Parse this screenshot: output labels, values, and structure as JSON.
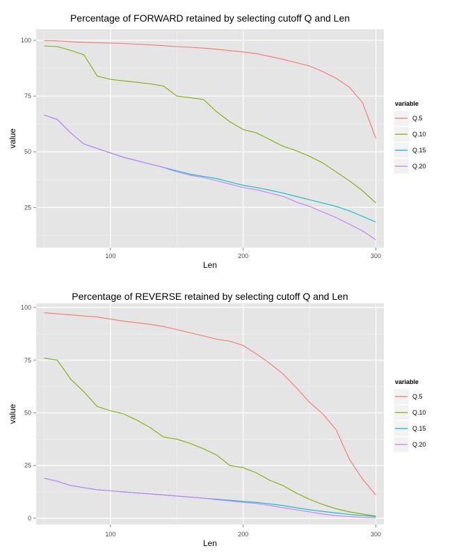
{
  "chart_data": [
    {
      "type": "line",
      "title": "Percentage of FORWARD retained by selecting cutoff Q and Len",
      "xlabel": "Len",
      "ylabel": "value",
      "xlim": [
        44,
        306
      ],
      "ylim": [
        7,
        105
      ],
      "xticks": [
        100,
        200,
        300
      ],
      "yticks": [
        25,
        50,
        75,
        100
      ],
      "grid": true,
      "legend": {
        "title": "variable",
        "position": "right"
      },
      "x": [
        50,
        60,
        70,
        80,
        90,
        100,
        110,
        120,
        130,
        140,
        150,
        160,
        170,
        180,
        190,
        200,
        210,
        220,
        230,
        240,
        250,
        260,
        270,
        280,
        290,
        300
      ],
      "series": [
        {
          "name": "Q.5",
          "color": "#F8766D",
          "values": [
            99.9,
            99.8,
            99.4,
            99.1,
            98.9,
            98.8,
            98.6,
            98.3,
            98.0,
            97.6,
            97.2,
            96.9,
            96.5,
            96.0,
            95.4,
            94.8,
            94.0,
            92.8,
            91.5,
            90.0,
            88.5,
            86.0,
            83.0,
            79.0,
            72.0,
            56.0
          ]
        },
        {
          "name": "Q.10",
          "color": "#7CAE00",
          "values": [
            97.5,
            97.2,
            95.5,
            93.5,
            84.0,
            82.5,
            81.8,
            81.2,
            80.5,
            79.5,
            75.0,
            74.3,
            73.5,
            68.0,
            63.5,
            60.0,
            58.5,
            55.5,
            52.5,
            50.5,
            48.0,
            45.0,
            41.0,
            37.0,
            32.5,
            27.0
          ]
        },
        {
          "name": "Q.15",
          "color": "#00BFC4",
          "values": [
            66.5,
            64.5,
            58.5,
            53.5,
            51.5,
            49.5,
            47.5,
            46.0,
            44.5,
            43.0,
            41.5,
            40.0,
            39.0,
            38.0,
            36.5,
            35.0,
            34.0,
            32.8,
            31.5,
            30.0,
            28.5,
            27.0,
            25.5,
            23.5,
            21.0,
            18.5
          ]
        },
        {
          "name": "Q.20",
          "color": "#C77CFF",
          "values": [
            66.5,
            64.5,
            58.5,
            53.5,
            51.5,
            49.5,
            47.5,
            46.0,
            44.5,
            43.0,
            41.0,
            39.5,
            38.5,
            37.0,
            35.5,
            34.0,
            33.0,
            31.5,
            30.0,
            27.5,
            25.5,
            23.0,
            20.5,
            17.5,
            14.5,
            10.5
          ]
        }
      ]
    },
    {
      "type": "line",
      "title": "Percentage of REVERSE retained by selecting cutoff Q and Len",
      "xlabel": "Len",
      "ylabel": "value",
      "xlim": [
        44,
        306
      ],
      "ylim": [
        -3,
        102
      ],
      "xticks": [
        100,
        200,
        300
      ],
      "yticks": [
        0,
        25,
        50,
        75,
        100
      ],
      "grid": true,
      "legend": {
        "title": "variable",
        "position": "right"
      },
      "x": [
        50,
        60,
        70,
        80,
        90,
        100,
        110,
        120,
        130,
        140,
        150,
        160,
        170,
        180,
        190,
        200,
        210,
        220,
        230,
        240,
        250,
        260,
        270,
        280,
        290,
        300
      ],
      "series": [
        {
          "name": "Q.5",
          "color": "#F8766D",
          "values": [
            97.5,
            97.0,
            96.5,
            96.0,
            95.5,
            94.5,
            93.5,
            92.8,
            92.0,
            91.0,
            89.5,
            88.0,
            86.5,
            85.0,
            84.0,
            82.0,
            78.0,
            73.5,
            68.5,
            62.0,
            55.0,
            49.5,
            42.0,
            28.0,
            18.5,
            11.0
          ]
        },
        {
          "name": "Q.10",
          "color": "#7CAE00",
          "values": [
            76.0,
            75.0,
            66.0,
            60.0,
            53.0,
            51.0,
            49.5,
            46.5,
            43.0,
            38.5,
            37.5,
            35.5,
            33.0,
            30.0,
            25.0,
            24.0,
            21.5,
            18.0,
            15.5,
            12.0,
            9.0,
            6.5,
            4.5,
            3.0,
            2.0,
            1.0
          ]
        },
        {
          "name": "Q.15",
          "color": "#00BFC4",
          "values": [
            19.0,
            17.5,
            15.5,
            14.5,
            13.5,
            13.0,
            12.5,
            12.0,
            11.5,
            11.0,
            10.5,
            10.0,
            9.5,
            9.0,
            8.5,
            8.0,
            7.5,
            6.8,
            6.0,
            5.0,
            4.0,
            3.2,
            2.5,
            1.8,
            1.3,
            0.8
          ]
        },
        {
          "name": "Q.20",
          "color": "#C77CFF",
          "values": [
            19.0,
            17.5,
            15.5,
            14.5,
            13.5,
            13.0,
            12.5,
            12.0,
            11.5,
            11.0,
            10.5,
            10.0,
            9.5,
            8.8,
            8.2,
            7.5,
            7.0,
            6.0,
            5.0,
            4.0,
            3.0,
            2.0,
            1.2,
            0.8,
            0.4,
            0.2
          ]
        }
      ]
    }
  ]
}
